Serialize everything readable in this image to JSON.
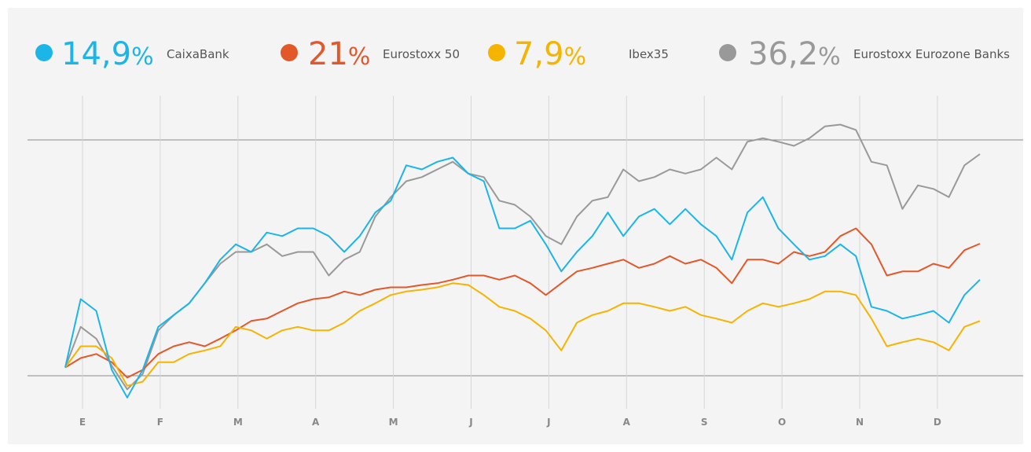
{
  "chart_data": {
    "type": "line",
    "month_labels": [
      "E",
      "F",
      "M",
      "A",
      "M",
      "J",
      "J",
      "A",
      "S",
      "O",
      "N",
      "D"
    ],
    "ylim": [
      -7,
      49
    ],
    "grid": true,
    "series": [
      {
        "name": "CaixaBank",
        "label": "14,9%",
        "color": "#1bb5e8",
        "values": [
          0,
          11.6,
          9.6,
          -0.4,
          -5.1,
          -0.4,
          6.9,
          8.9,
          10.9,
          14.3,
          18.3,
          20.9,
          19.6,
          22.9,
          22.3,
          23.6,
          23.6,
          22.3,
          19.6,
          22.3,
          26.3,
          28.3,
          34.3,
          33.6,
          34.9,
          35.6,
          32.9,
          31.6,
          23.6,
          23.6,
          24.9,
          20.9,
          16.3,
          19.6,
          22.3,
          26.3,
          22.3,
          25.6,
          26.9,
          24.3,
          26.9,
          24.3,
          22.3,
          18.3,
          26.3,
          28.9,
          23.6,
          20.9,
          18.3,
          18.9,
          20.9,
          18.9,
          10.3,
          9.6,
          8.3,
          8.9,
          9.6,
          7.6,
          12.3,
          14.9
        ]
      },
      {
        "name": "Eurostoxx 50",
        "label": "21%",
        "color": "#e2582a",
        "values": [
          0,
          1.6,
          2.3,
          0.9,
          -1.7,
          -0.4,
          2.3,
          3.6,
          4.3,
          3.6,
          4.9,
          6.3,
          7.9,
          8.3,
          9.6,
          10.9,
          11.6,
          11.9,
          12.9,
          12.3,
          13.2,
          13.6,
          13.6,
          14.0,
          14.3,
          14.9,
          15.6,
          15.6,
          14.9,
          15.6,
          14.3,
          12.3,
          14.3,
          16.3,
          16.9,
          17.6,
          18.3,
          16.9,
          17.6,
          18.9,
          17.6,
          18.3,
          16.9,
          14.3,
          18.3,
          18.3,
          17.6,
          19.6,
          18.9,
          19.6,
          22.3,
          23.6,
          20.9,
          15.6,
          16.3,
          16.3,
          17.6,
          16.9,
          19.9,
          21
        ]
      },
      {
        "name": "Ibex35",
        "label": "7,9%",
        "color": "#f5b400",
        "values": [
          0,
          3.6,
          3.6,
          1.6,
          -3.1,
          -2.4,
          0.9,
          0.9,
          2.3,
          2.9,
          3.6,
          6.9,
          6.3,
          4.9,
          6.3,
          6.9,
          6.3,
          6.3,
          7.6,
          9.6,
          10.9,
          12.3,
          12.9,
          13.2,
          13.6,
          14.3,
          14.0,
          12.3,
          10.3,
          9.6,
          8.3,
          6.3,
          2.9,
          7.6,
          8.9,
          9.6,
          10.9,
          10.9,
          10.3,
          9.6,
          10.3,
          8.9,
          8.3,
          7.6,
          9.6,
          10.9,
          10.3,
          10.9,
          11.6,
          12.9,
          12.9,
          12.3,
          8.3,
          3.6,
          4.3,
          4.9,
          4.3,
          2.9,
          6.9,
          7.9
        ]
      },
      {
        "name": "Eurostoxx Eurozone Banks",
        "label": "36,2%",
        "color": "#999999",
        "values": [
          0,
          6.9,
          4.9,
          0.3,
          -3.7,
          -1.1,
          6.3,
          8.9,
          10.9,
          14.3,
          17.6,
          19.6,
          19.6,
          20.9,
          18.9,
          19.6,
          19.6,
          15.6,
          18.3,
          19.6,
          25.6,
          28.9,
          31.6,
          32.3,
          33.6,
          34.9,
          32.9,
          32.3,
          28.3,
          27.6,
          25.6,
          22.3,
          20.9,
          25.6,
          28.3,
          28.9,
          33.6,
          31.6,
          32.3,
          33.6,
          32.9,
          33.6,
          35.6,
          33.6,
          38.3,
          38.9,
          38.3,
          37.6,
          38.9,
          40.9,
          41.2,
          40.3,
          34.9,
          34.3,
          26.9,
          30.9,
          30.3,
          28.9,
          34.3,
          36.2
        ]
      }
    ]
  }
}
